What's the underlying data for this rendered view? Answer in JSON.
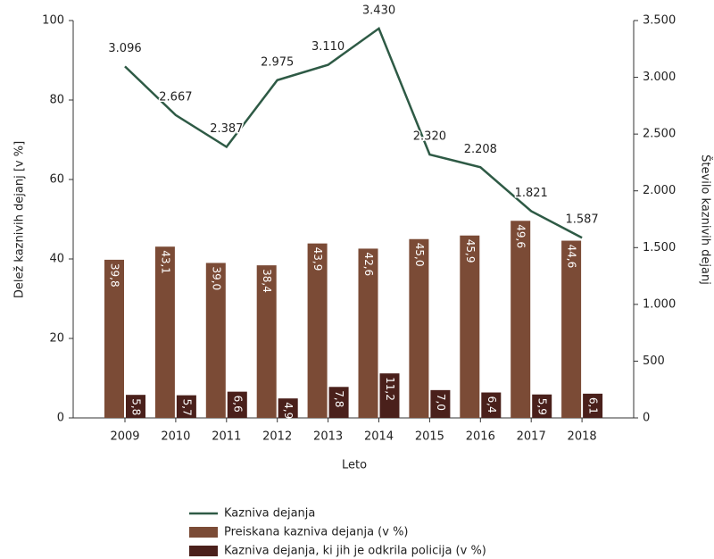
{
  "chart_data": {
    "type": "bar",
    "x_label": "Leto",
    "y_label": "Delež kaznivih dejanj [v %]",
    "y2_label": "Število kaznivih dejanj",
    "categories": [
      "2009",
      "2010",
      "2011",
      "2012",
      "2013",
      "2014",
      "2015",
      "2016",
      "2017",
      "2018"
    ],
    "series": [
      {
        "name": "Kazniva dejanja",
        "type": "line",
        "axis": "y2",
        "color": "#2e5a45",
        "values": [
          3096,
          2667,
          2387,
          2975,
          3110,
          3430,
          2320,
          2208,
          1821,
          1587
        ],
        "value_labels": [
          "3.096",
          "2.667",
          "2.387",
          "2.975",
          "3.110",
          "3.430",
          "2.320",
          "2.208",
          "1.821",
          "1.587"
        ]
      },
      {
        "name": "Preiskana kazniva dejanja (v %)",
        "type": "bar",
        "color": "#7b4b36",
        "values": [
          39.8,
          43.1,
          39.0,
          38.4,
          43.9,
          42.6,
          45.0,
          45.9,
          49.6,
          44.6
        ],
        "value_labels": [
          "39,8",
          "43,1",
          "39,0",
          "38,4",
          "43,9",
          "42,6",
          "45,0",
          "45,9",
          "49,6",
          "44,6"
        ]
      },
      {
        "name": "Kazniva dejanja, ki jih je odkrila policija (v %)",
        "type": "bar",
        "color": "#4a201b",
        "values": [
          5.8,
          5.7,
          6.6,
          4.9,
          7.8,
          11.2,
          7.0,
          6.4,
          5.9,
          6.1
        ],
        "value_labels": [
          "5,8",
          "5,7",
          "6,6",
          "4,9",
          "7,8",
          "11,2",
          "7,0",
          "6,4",
          "5,9",
          "6,1"
        ]
      }
    ],
    "ylim": [
      0,
      100
    ],
    "yticks": [
      0,
      20,
      40,
      60,
      80,
      100
    ],
    "y2lim": [
      0,
      3500
    ],
    "y2ticks": [
      0,
      500,
      {
        "value": 1000,
        "label": "1.000"
      },
      {
        "value": 1500,
        "label": "1.500"
      },
      {
        "value": 2000,
        "label": "2.000"
      },
      {
        "value": 2500,
        "label": "2.500"
      },
      {
        "value": 3000,
        "label": "3.000"
      },
      {
        "value": 3500,
        "label": "3.500"
      }
    ]
  }
}
